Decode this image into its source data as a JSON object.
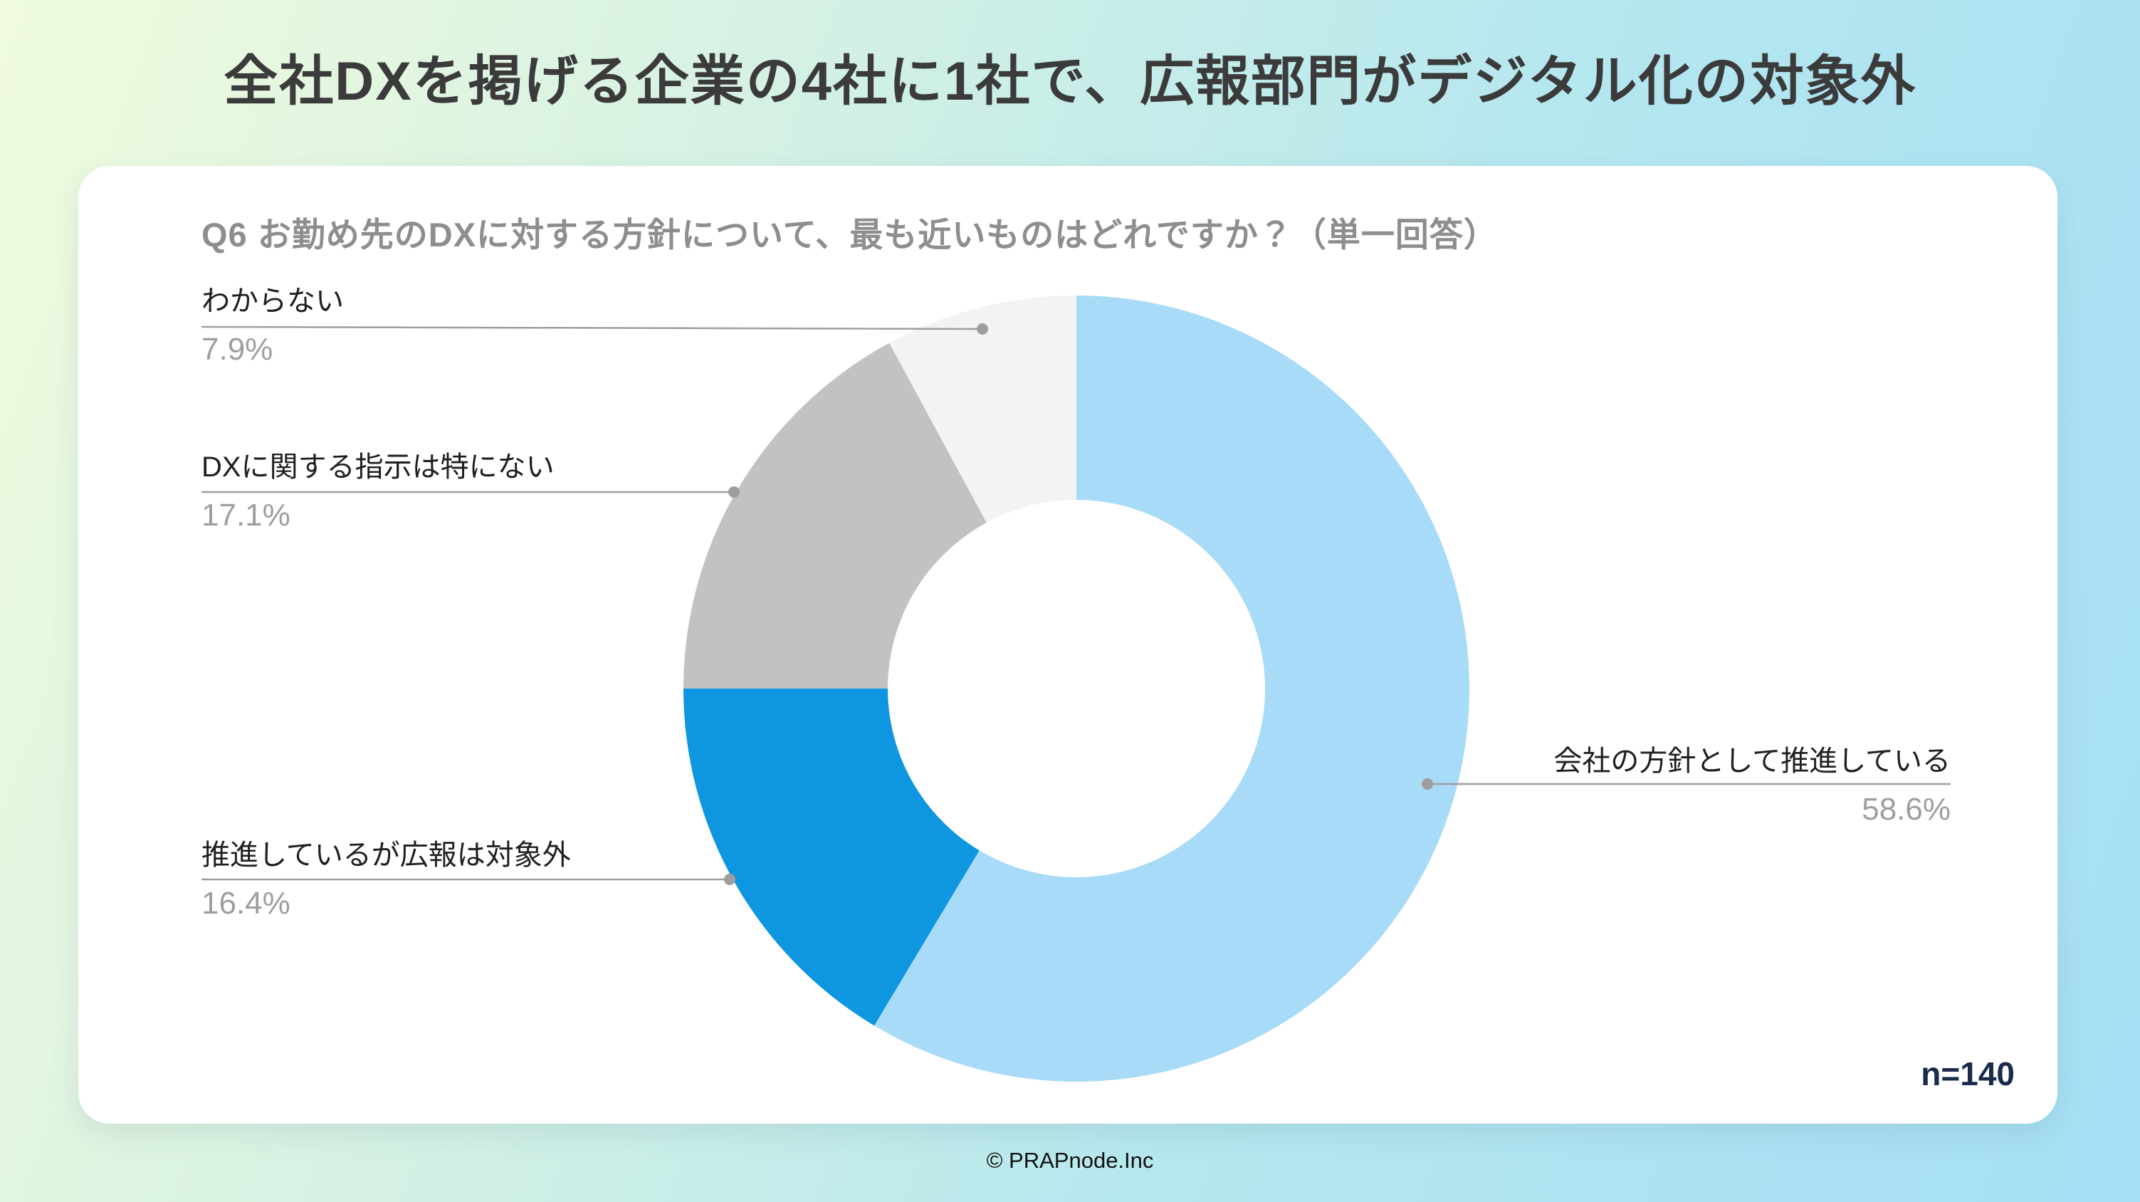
{
  "page": {
    "title": "全社DXを掲げる企業の4社に1社で、広報部門がデジタル化の対象外",
    "footer": "© PRAPnode.Inc"
  },
  "chart_data": {
    "type": "pie",
    "donut": true,
    "title": "Q6 お勤め先のDXに対する方針について、最も近いものはどれですか？（単一回答）",
    "categories": [
      "会社の方針として推進している",
      "推進しているが広報は対象外",
      "DXに関する指示は特にない",
      "わからない"
    ],
    "values": [
      58.6,
      16.4,
      17.1,
      7.9
    ],
    "display_values": [
      "58.6%",
      "16.4%",
      "17.1%",
      "7.9%"
    ],
    "unit": "percent",
    "sample_size": "n=140",
    "colors": [
      "#a8dbf8",
      "#0e96e0",
      "#c2c2c2",
      "#f2f3f3"
    ],
    "start_angle_deg": 0,
    "direction": "clockwise",
    "inner_radius_ratio": 0.48,
    "legend_position": "none",
    "label_colors": {
      "name": "#1f1f1f",
      "value": "#9e9e9e",
      "leader_line": "#9e9e9e"
    }
  }
}
